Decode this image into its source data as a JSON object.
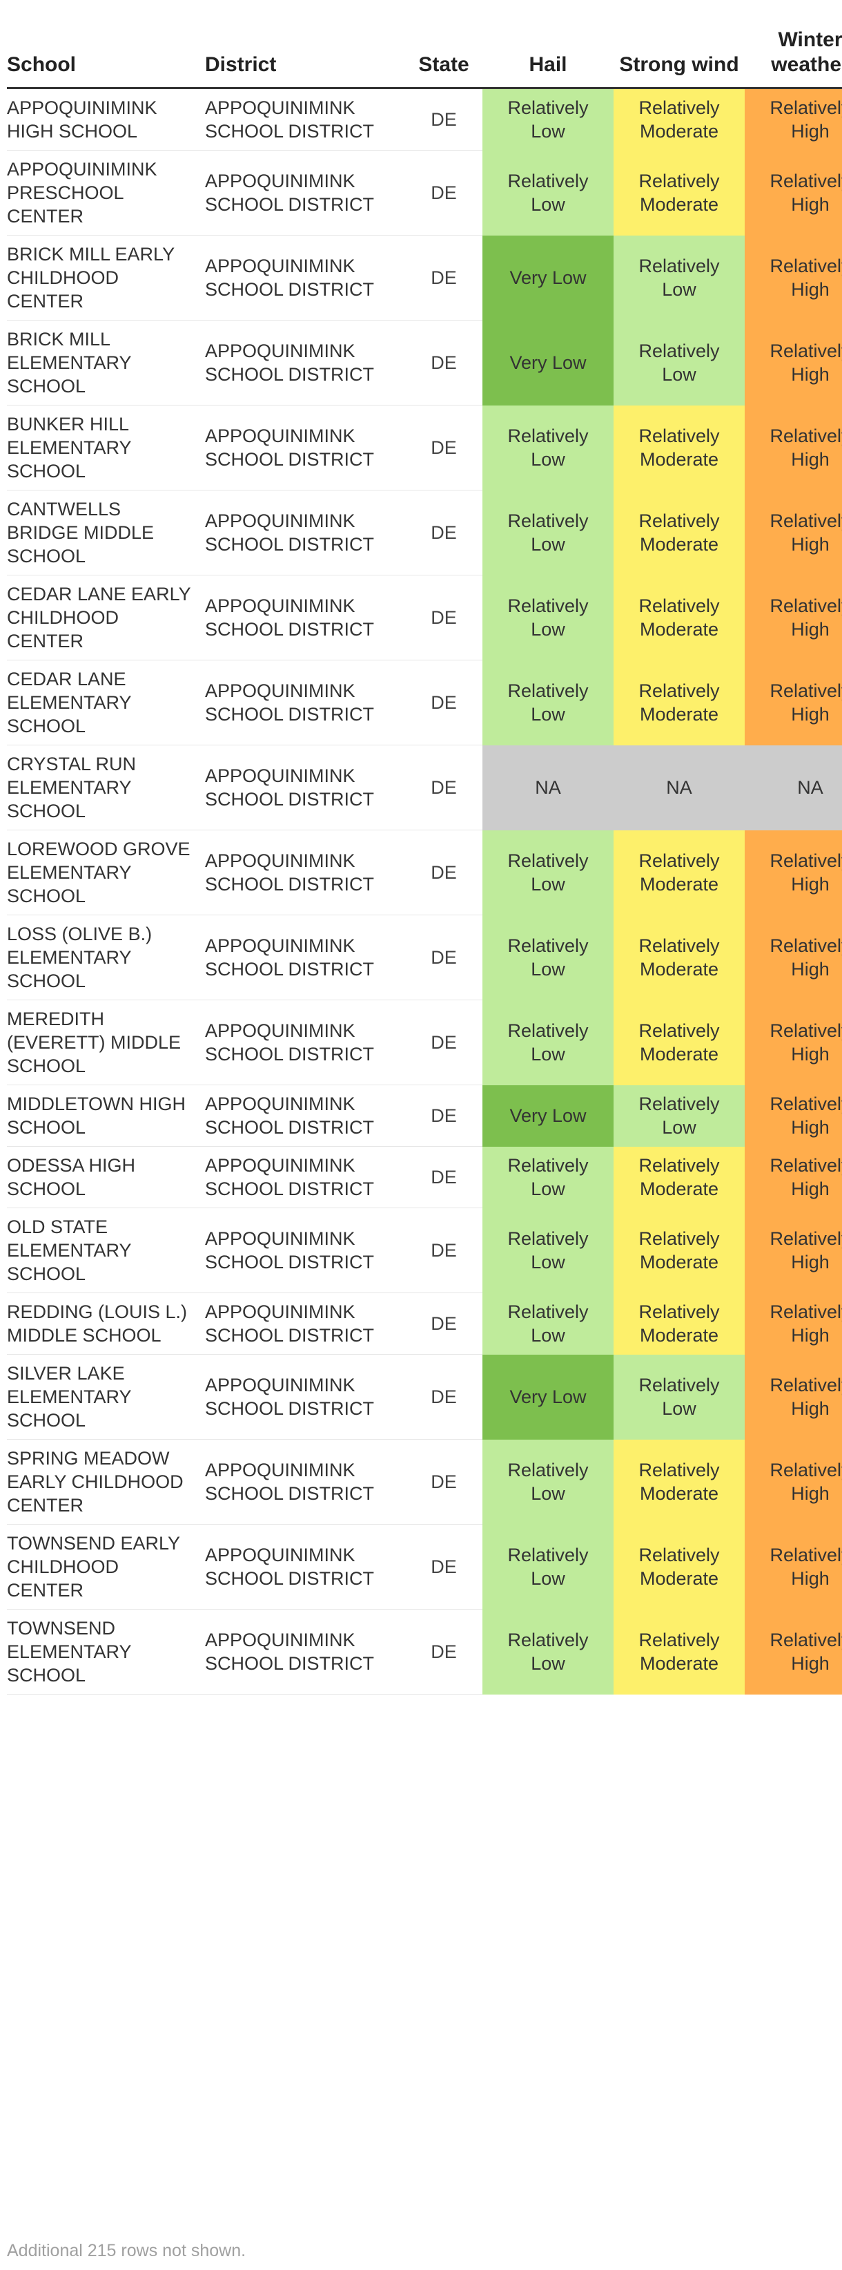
{
  "columns": {
    "school": "School",
    "district": "District",
    "state": "State",
    "hail": "Hail",
    "strong_wind": "Strong wind",
    "winter_weather": "Winter weather"
  },
  "risk_colors": {
    "Very Low": "#7dbf4e",
    "Relatively Low": "#bfeb9b",
    "Relatively Moderate": "#fdf06b",
    "Relatively High": "#ffad4c",
    "NA": "#cccccc"
  },
  "rows": [
    {
      "school": "APPOQUINIMINK HIGH SCHOOL",
      "district": "APPOQUINIMINK SCHOOL DISTRICT",
      "state": "DE",
      "hail": "Relatively Low",
      "strong_wind": "Relatively Moderate",
      "winter_weather": "Relatively High"
    },
    {
      "school": "APPOQUINIMINK PRESCHOOL CENTER",
      "district": "APPOQUINIMINK SCHOOL DISTRICT",
      "state": "DE",
      "hail": "Relatively Low",
      "strong_wind": "Relatively Moderate",
      "winter_weather": "Relatively High"
    },
    {
      "school": "BRICK MILL EARLY CHILDHOOD CENTER",
      "district": "APPOQUINIMINK SCHOOL DISTRICT",
      "state": "DE",
      "hail": "Very Low",
      "strong_wind": "Relatively Low",
      "winter_weather": "Relatively High"
    },
    {
      "school": "BRICK MILL ELEMENTARY SCHOOL",
      "district": "APPOQUINIMINK SCHOOL DISTRICT",
      "state": "DE",
      "hail": "Very Low",
      "strong_wind": "Relatively Low",
      "winter_weather": "Relatively High"
    },
    {
      "school": "BUNKER HILL ELEMENTARY SCHOOL",
      "district": "APPOQUINIMINK SCHOOL DISTRICT",
      "state": "DE",
      "hail": "Relatively Low",
      "strong_wind": "Relatively Moderate",
      "winter_weather": "Relatively High"
    },
    {
      "school": "CANTWELLS BRIDGE MIDDLE SCHOOL",
      "district": "APPOQUINIMINK SCHOOL DISTRICT",
      "state": "DE",
      "hail": "Relatively Low",
      "strong_wind": "Relatively Moderate",
      "winter_weather": "Relatively High"
    },
    {
      "school": "CEDAR LANE EARLY CHILDHOOD CENTER",
      "district": "APPOQUINIMINK SCHOOL DISTRICT",
      "state": "DE",
      "hail": "Relatively Low",
      "strong_wind": "Relatively Moderate",
      "winter_weather": "Relatively High"
    },
    {
      "school": "CEDAR LANE ELEMENTARY SCHOOL",
      "district": "APPOQUINIMINK SCHOOL DISTRICT",
      "state": "DE",
      "hail": "Relatively Low",
      "strong_wind": "Relatively Moderate",
      "winter_weather": "Relatively High"
    },
    {
      "school": "CRYSTAL RUN ELEMENTARY SCHOOL",
      "district": "APPOQUINIMINK SCHOOL DISTRICT",
      "state": "DE",
      "hail": "NA",
      "strong_wind": "NA",
      "winter_weather": "NA"
    },
    {
      "school": "LOREWOOD GROVE ELEMENTARY SCHOOL",
      "district": "APPOQUINIMINK SCHOOL DISTRICT",
      "state": "DE",
      "hail": "Relatively Low",
      "strong_wind": "Relatively Moderate",
      "winter_weather": "Relatively High"
    },
    {
      "school": "LOSS (OLIVE B.) ELEMENTARY SCHOOL",
      "district": "APPOQUINIMINK SCHOOL DISTRICT",
      "state": "DE",
      "hail": "Relatively Low",
      "strong_wind": "Relatively Moderate",
      "winter_weather": "Relatively High"
    },
    {
      "school": "MEREDITH (EVERETT) MIDDLE SCHOOL",
      "district": "APPOQUINIMINK SCHOOL DISTRICT",
      "state": "DE",
      "hail": "Relatively Low",
      "strong_wind": "Relatively Moderate",
      "winter_weather": "Relatively High"
    },
    {
      "school": "MIDDLETOWN HIGH SCHOOL",
      "district": "APPOQUINIMINK SCHOOL DISTRICT",
      "state": "DE",
      "hail": "Very Low",
      "strong_wind": "Relatively Low",
      "winter_weather": "Relatively High"
    },
    {
      "school": "ODESSA HIGH SCHOOL",
      "district": "APPOQUINIMINK SCHOOL DISTRICT",
      "state": "DE",
      "hail": "Relatively Low",
      "strong_wind": "Relatively Moderate",
      "winter_weather": "Relatively High"
    },
    {
      "school": "OLD STATE ELEMENTARY SCHOOL",
      "district": "APPOQUINIMINK SCHOOL DISTRICT",
      "state": "DE",
      "hail": "Relatively Low",
      "strong_wind": "Relatively Moderate",
      "winter_weather": "Relatively High"
    },
    {
      "school": "REDDING (LOUIS L.) MIDDLE SCHOOL",
      "district": "APPOQUINIMINK SCHOOL DISTRICT",
      "state": "DE",
      "hail": "Relatively Low",
      "strong_wind": "Relatively Moderate",
      "winter_weather": "Relatively High"
    },
    {
      "school": "SILVER LAKE ELEMENTARY SCHOOL",
      "district": "APPOQUINIMINK SCHOOL DISTRICT",
      "state": "DE",
      "hail": "Very Low",
      "strong_wind": "Relatively Low",
      "winter_weather": "Relatively High"
    },
    {
      "school": "SPRING MEADOW EARLY CHILDHOOD CENTER",
      "district": "APPOQUINIMINK SCHOOL DISTRICT",
      "state": "DE",
      "hail": "Relatively Low",
      "strong_wind": "Relatively Moderate",
      "winter_weather": "Relatively High"
    },
    {
      "school": "TOWNSEND EARLY CHILDHOOD CENTER",
      "district": "APPOQUINIMINK SCHOOL DISTRICT",
      "state": "DE",
      "hail": "Relatively Low",
      "strong_wind": "Relatively Moderate",
      "winter_weather": "Relatively High"
    },
    {
      "school": "TOWNSEND ELEMENTARY SCHOOL",
      "district": "APPOQUINIMINK SCHOOL DISTRICT",
      "state": "DE",
      "hail": "Relatively Low",
      "strong_wind": "Relatively Moderate",
      "winter_weather": "Relatively High"
    }
  ],
  "footnote": "Additional 215 rows not shown."
}
